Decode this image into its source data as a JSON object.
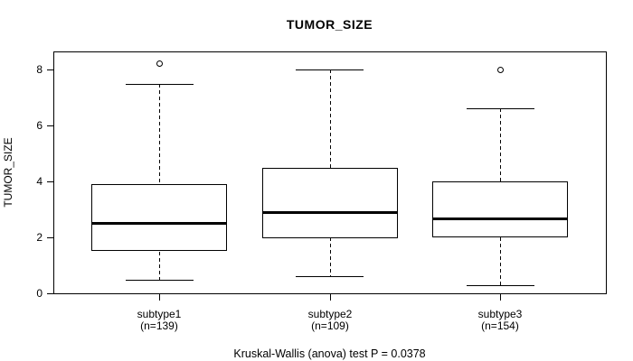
{
  "chart_data": {
    "type": "boxplot",
    "title": "TUMOR_SIZE",
    "ylabel": "TUMOR_SIZE",
    "xlabel": "",
    "ylim": [
      0,
      8.65
    ],
    "yticks": [
      "0",
      "2",
      "4",
      "6",
      "8"
    ],
    "grid": "off",
    "footer": "Kruskal-Wallis (anova) test P = 0.0378",
    "groups": [
      {
        "label": "subtype1",
        "sublabel": "(n=139)",
        "lower_whisker": 0.5,
        "q1": 1.5,
        "median": 2.5,
        "q3": 3.9,
        "upper_whisker": 7.5,
        "outliers": [
          8.2
        ]
      },
      {
        "label": "subtype2",
        "sublabel": "(n=109)",
        "lower_whisker": 0.6,
        "q1": 2.0,
        "median": 2.9,
        "q3": 4.5,
        "upper_whisker": 8.0,
        "outliers": []
      },
      {
        "label": "subtype3",
        "sublabel": "(n=154)",
        "lower_whisker": 0.3,
        "q1": 2.0,
        "median": 2.65,
        "q3": 4.0,
        "upper_whisker": 6.6,
        "outliers": [
          8.0
        ]
      }
    ],
    "colors": {
      "line": "#000000",
      "background": "#ffffff"
    }
  }
}
